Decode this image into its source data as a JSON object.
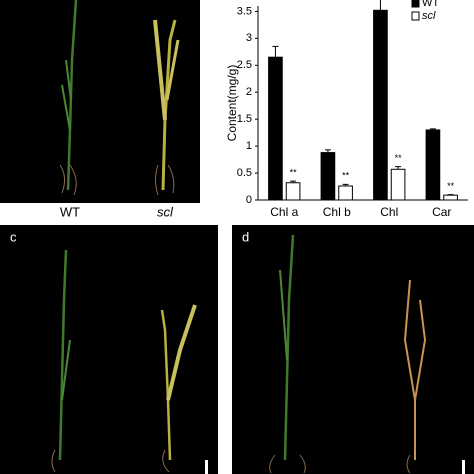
{
  "figure": {
    "wt_label": "WT",
    "scl_label": "scl",
    "panel_c": "c",
    "panel_d": "d"
  },
  "chart_data": {
    "type": "bar",
    "ylabel": "Content(mg/g)",
    "categories": [
      "Chl a",
      "Chl b",
      "Chl",
      "Car"
    ],
    "series": [
      {
        "name": "WT",
        "color": "#000000",
        "values": [
          2.65,
          0.88,
          3.52,
          1.3
        ],
        "errors": [
          0.2,
          0.05,
          0.2,
          0.02
        ]
      },
      {
        "name": "scl",
        "color": "#ffffff",
        "values": [
          0.32,
          0.26,
          0.57,
          0.09
        ],
        "errors": [
          0.03,
          0.03,
          0.05,
          0.01
        ]
      }
    ],
    "annotations": [
      "**",
      "**",
      "**",
      "**"
    ],
    "ylim": [
      0,
      3.6
    ],
    "yticks": [
      0,
      0.5,
      1,
      1.5,
      2,
      2.5,
      3,
      3.5
    ],
    "grid": false
  }
}
